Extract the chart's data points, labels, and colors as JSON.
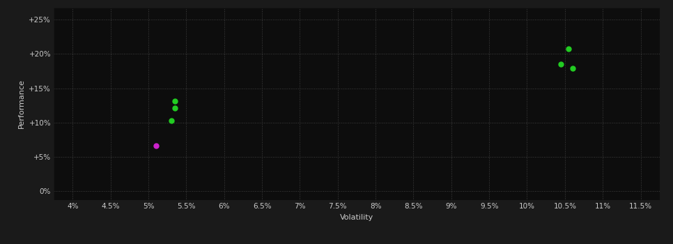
{
  "background_color": "#1a1a1a",
  "plot_bg_color": "#0d0d0d",
  "grid_color": "#404040",
  "text_color": "#cccccc",
  "xlabel": "Volatility",
  "ylabel": "Performance",
  "x_ticks": [
    0.04,
    0.045,
    0.05,
    0.055,
    0.06,
    0.065,
    0.07,
    0.075,
    0.08,
    0.085,
    0.09,
    0.095,
    0.1,
    0.105,
    0.11,
    0.115
  ],
  "y_ticks": [
    0.0,
    0.05,
    0.1,
    0.15,
    0.2,
    0.25
  ],
  "xlim": [
    0.0375,
    0.1175
  ],
  "ylim": [
    -0.013,
    0.268
  ],
  "scatter_green": [
    [
      0.0535,
      0.131
    ],
    [
      0.0535,
      0.121
    ],
    [
      0.053,
      0.103
    ],
    [
      0.1055,
      0.208
    ],
    [
      0.1045,
      0.185
    ],
    [
      0.106,
      0.179
    ]
  ],
  "scatter_magenta": [
    [
      0.051,
      0.066
    ]
  ],
  "green_color": "#22cc22",
  "magenta_color": "#cc22cc",
  "dot_size": 25,
  "label_fontsize": 8,
  "tick_fontsize": 7.5
}
